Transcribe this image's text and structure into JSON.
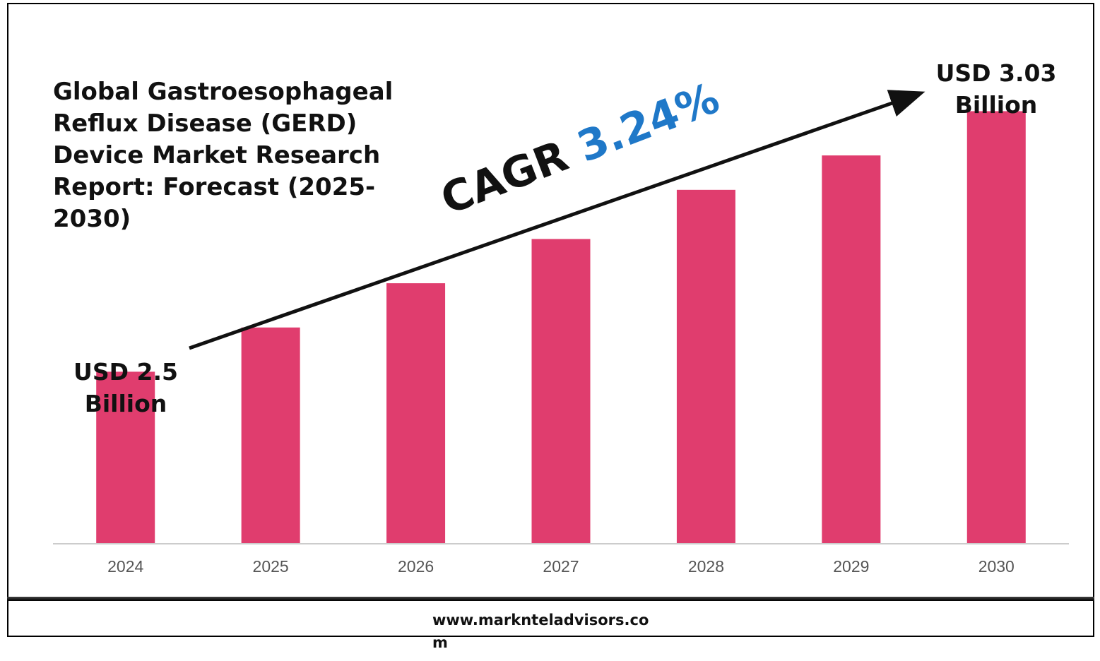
{
  "title": "Global Gastroesophageal Reflux Disease (GERD) Device Market Research Report: Forecast (2025-2030)",
  "cagr": {
    "label": "CAGR",
    "value": "3.24%"
  },
  "start_value_label": {
    "line1": "USD 2.5",
    "line2": "Billion"
  },
  "end_value_label": {
    "line1": "USD 3.03",
    "line2": "Billion"
  },
  "footer": "www.marknteladvisors.com",
  "colors": {
    "bar": "#e03d6e",
    "cagr_value": "#1f78c8",
    "axis": "#cccccc",
    "arrow": "#111111"
  },
  "chart_data": {
    "type": "bar",
    "categories": [
      "2024",
      "2025",
      "2026",
      "2027",
      "2028",
      "2029",
      "2030"
    ],
    "values": [
      2.5,
      2.59,
      2.68,
      2.77,
      2.87,
      2.94,
      3.03
    ],
    "ylim": [
      2.15,
      3.17
    ],
    "xlabel": "",
    "ylabel": "",
    "grid": false,
    "legend": "none"
  }
}
